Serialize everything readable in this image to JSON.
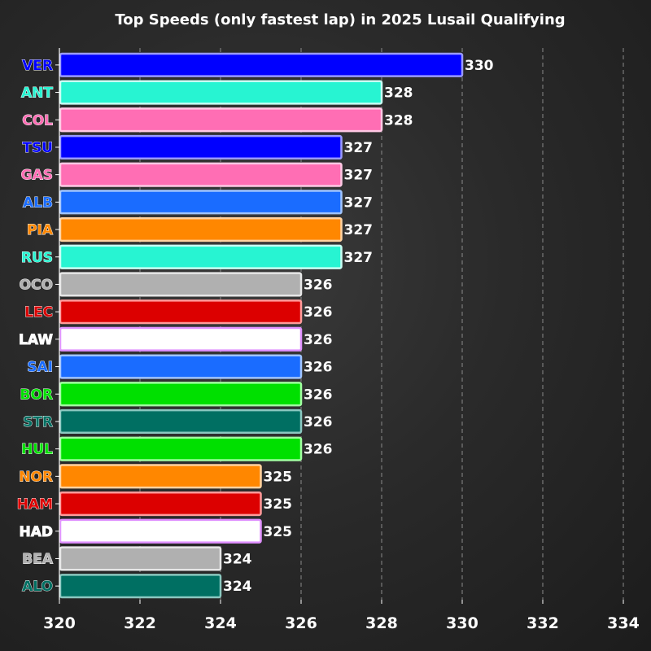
{
  "chart_data": {
    "type": "bar",
    "orientation": "horizontal",
    "title": "Top Speeds (only fastest lap) in 2025 Lusail Qualifying",
    "xlabel": "",
    "ylabel": "",
    "xlim": [
      320,
      334
    ],
    "xticks": [
      320,
      322,
      324,
      326,
      328,
      330,
      332,
      334
    ],
    "grid": "vertical-dashed",
    "categories": [
      "VER",
      "ANT",
      "COL",
      "TSU",
      "GAS",
      "ALB",
      "PIA",
      "RUS",
      "OCO",
      "LEC",
      "LAW",
      "SAI",
      "BOR",
      "STR",
      "HUL",
      "NOR",
      "HAM",
      "HAD",
      "BEA",
      "ALO"
    ],
    "values": [
      330,
      328,
      328,
      327,
      327,
      327,
      327,
      327,
      326,
      326,
      326,
      326,
      326,
      326,
      326,
      325,
      325,
      325,
      324,
      324
    ],
    "value_labels": [
      "330",
      "328",
      "328",
      "327",
      "327",
      "327",
      "327",
      "327",
      "326",
      "326",
      "326",
      "326",
      "326",
      "326",
      "326",
      "325",
      "325",
      "325",
      "324",
      "324"
    ],
    "bar_colors": [
      "#0000ff",
      "#27f4d2",
      "#ff6eb4",
      "#0000ff",
      "#ff6eb4",
      "#1a6cff",
      "#ff8700",
      "#27f4d2",
      "#b0b0b0",
      "#dc0000",
      "#ffffff",
      "#1a6cff",
      "#00e000",
      "#006f62",
      "#00e000",
      "#ff8700",
      "#dc0000",
      "#ffffff",
      "#b0b0b0",
      "#006f62"
    ],
    "bar_edge_colors": [
      "#9a9aff",
      "#c8fff4",
      "#ffc8e4",
      "#9a9aff",
      "#ffc8e4",
      "#a0c4ff",
      "#ffd2a0",
      "#c8fff4",
      "#e6e6e6",
      "#ff9a9a",
      "#e090ff",
      "#a0c4ff",
      "#a0ffa0",
      "#8ac8c0",
      "#a0ffa0",
      "#ffd2a0",
      "#ff9a9a",
      "#e090ff",
      "#e6e6e6",
      "#8ac8c0"
    ],
    "label_colors": [
      "#0000ff",
      "#27f4d2",
      "#ff6eb4",
      "#0000ff",
      "#ff6eb4",
      "#1a6cff",
      "#ff8700",
      "#27f4d2",
      "#b0b0b0",
      "#dc0000",
      "#ffffff",
      "#1a6cff",
      "#00e000",
      "#006f62",
      "#00e000",
      "#ff8700",
      "#dc0000",
      "#ffffff",
      "#b0b0b0",
      "#006f62"
    ]
  }
}
